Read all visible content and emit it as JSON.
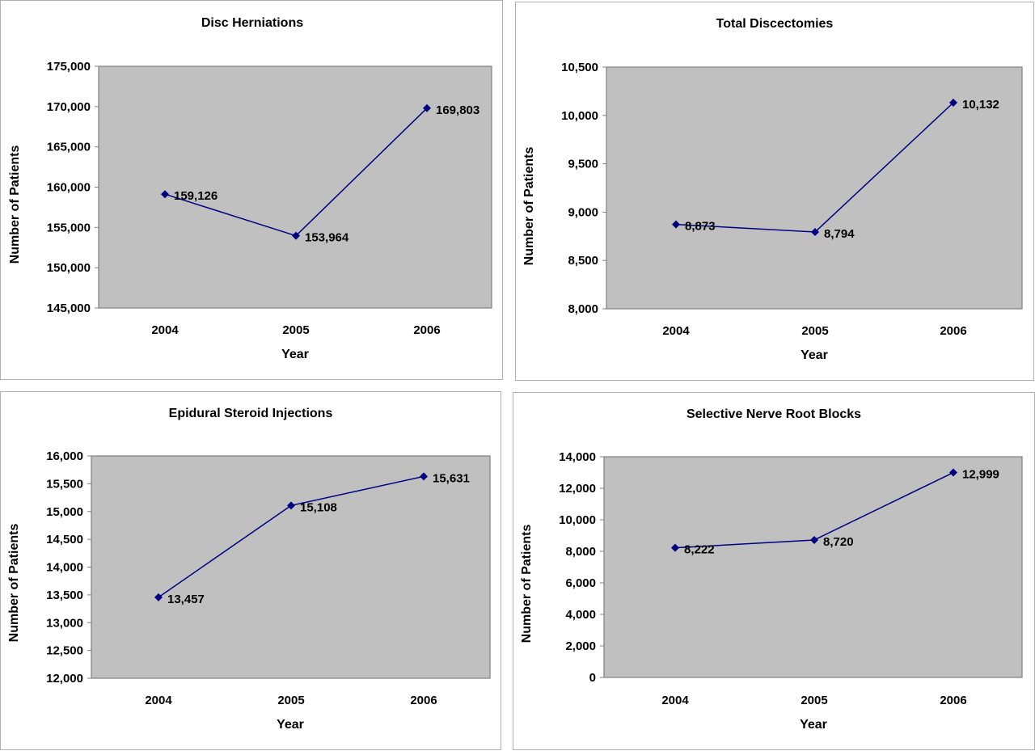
{
  "chart_data": [
    {
      "type": "line",
      "title": "Disc Herniations",
      "xlabel": "Year",
      "ylabel": "Number of Patients",
      "categories": [
        "2004",
        "2005",
        "2006"
      ],
      "values": [
        159126,
        153964,
        169803
      ],
      "data_labels": [
        "159,126",
        "153,964",
        "169,803"
      ],
      "ylim": [
        145000,
        175000
      ],
      "yticks": [
        145000,
        150000,
        155000,
        160000,
        165000,
        170000,
        175000
      ],
      "ytick_labels": [
        "145,000",
        "150,000",
        "155,000",
        "160,000",
        "165,000",
        "170,000",
        "175,000"
      ],
      "grid": false,
      "legend": "none",
      "colors": {
        "plot_bg": "#c0c0c0",
        "series": "#000080"
      }
    },
    {
      "type": "line",
      "title": "Total Discectomies",
      "xlabel": "Year",
      "ylabel": "Number of Patients",
      "categories": [
        "2004",
        "2005",
        "2006"
      ],
      "values": [
        8873,
        8794,
        10132
      ],
      "data_labels": [
        "8,873",
        "8,794",
        "10,132"
      ],
      "ylim": [
        8000,
        10500
      ],
      "yticks": [
        8000,
        8500,
        9000,
        9500,
        10000,
        10500
      ],
      "ytick_labels": [
        "8,000",
        "8,500",
        "9,000",
        "9,500",
        "10,000",
        "10,500"
      ],
      "grid": false,
      "legend": "none",
      "colors": {
        "plot_bg": "#c0c0c0",
        "series": "#000080"
      }
    },
    {
      "type": "line",
      "title": "Epidural Steroid Injections",
      "xlabel": "Year",
      "ylabel": "Number of Patients",
      "categories": [
        "2004",
        "2005",
        "2006"
      ],
      "values": [
        13457,
        15108,
        15631
      ],
      "data_labels": [
        "13,457",
        "15,108",
        "15,631"
      ],
      "ylim": [
        12000,
        16000
      ],
      "yticks": [
        12000,
        12500,
        13000,
        13500,
        14000,
        14500,
        15000,
        15500,
        16000
      ],
      "ytick_labels": [
        "12,000",
        "12,500",
        "13,000",
        "13,500",
        "14,000",
        "14,500",
        "15,000",
        "15,500",
        "16,000"
      ],
      "grid": false,
      "legend": "none",
      "colors": {
        "plot_bg": "#c0c0c0",
        "series": "#000080"
      }
    },
    {
      "type": "line",
      "title": "Selective Nerve Root Blocks",
      "xlabel": "Year",
      "ylabel": "Number of Patients",
      "categories": [
        "2004",
        "2005",
        "2006"
      ],
      "values": [
        8222,
        8720,
        12999
      ],
      "data_labels": [
        "8,222",
        "8,720",
        "12,999"
      ],
      "ylim": [
        0,
        14000
      ],
      "yticks": [
        0,
        2000,
        4000,
        6000,
        8000,
        10000,
        12000,
        14000
      ],
      "ytick_labels": [
        "0",
        "2,000",
        "4,000",
        "6,000",
        "8,000",
        "10,000",
        "12,000",
        "14,000"
      ],
      "grid": false,
      "legend": "none",
      "colors": {
        "plot_bg": "#c0c0c0",
        "series": "#000080"
      }
    }
  ]
}
